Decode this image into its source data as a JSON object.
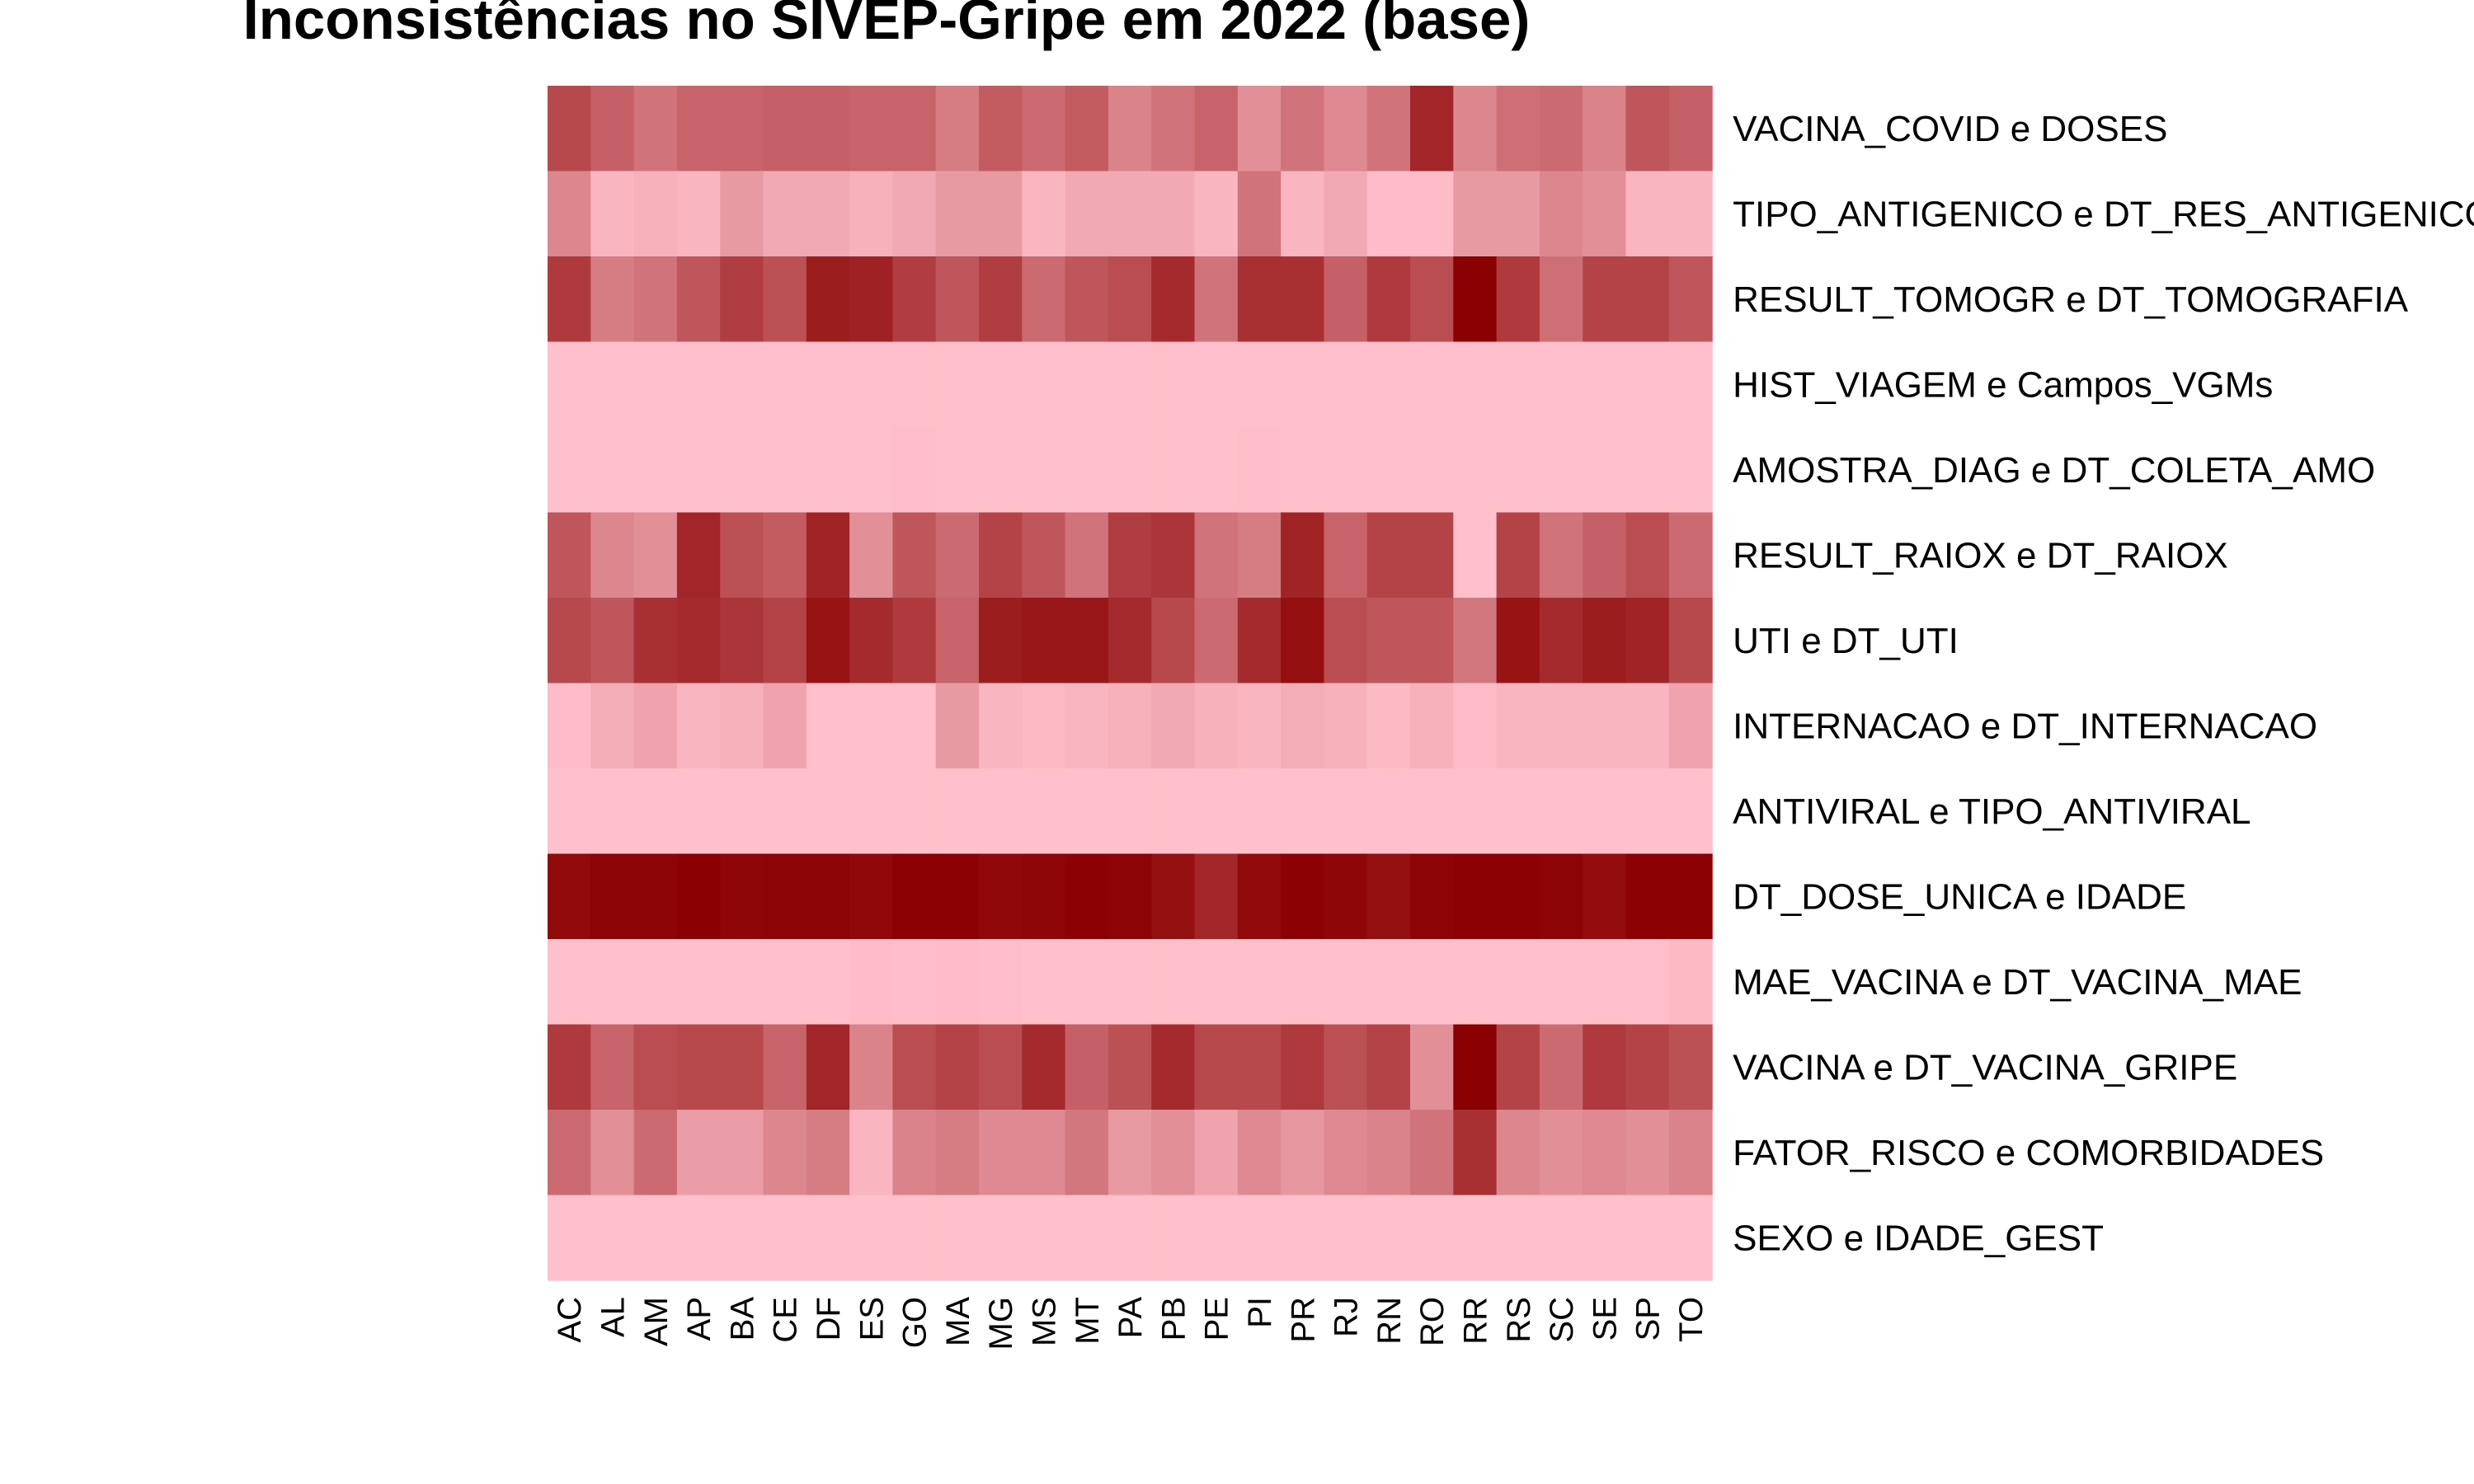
{
  "chart_data": {
    "type": "heatmap",
    "title": "Inconsistências no SIVEP-Gripe em 2022 (base)",
    "xlabel": "",
    "ylabel": "",
    "grid": false,
    "legend": "none",
    "colors": {
      "low": "#FFC0CB",
      "high": "#8B0000"
    },
    "value_scale": [
      0,
      1
    ],
    "columns": [
      "AC",
      "AL",
      "AM",
      "AP",
      "BA",
      "CE",
      "DF",
      "ES",
      "GO",
      "MA",
      "MG",
      "MS",
      "MT",
      "PA",
      "PB",
      "PE",
      "PI",
      "PR",
      "RJ",
      "RN",
      "RO",
      "RR",
      "RS",
      "SC",
      "SE",
      "SP",
      "TO"
    ],
    "rows": [
      "VACINA_COVID e DOSES",
      "TIPO_ANTIGENICO e DT_RES_ANTIGENICO",
      "RESULT_TOMOGR e DT_TOMOGRAFIA",
      "HIST_VIAGEM e Campos_VGMs",
      "AMOSTRA_DIAG e DT_COLETA_AMO",
      "RESULT_RAIOX e DT_RAIOX",
      "UTI e DT_UTI",
      "INTERNACAO e DT_INTERNACAO",
      "ANTIVIRAL e TIPO_ANTIVIRAL",
      "DT_DOSE_UNICA e IDADE",
      "MAE_VACINA e DT_VACINA_MAE",
      "VACINA e DT_VACINA_GRIPE",
      "FATOR_RISCO e COMORBIDADES",
      "SEXO e IDADE_GEST"
    ],
    "values": [
      [
        0.62,
        0.5,
        0.4,
        0.48,
        0.48,
        0.5,
        0.5,
        0.48,
        0.48,
        0.35,
        0.52,
        0.45,
        0.52,
        0.32,
        0.4,
        0.48,
        0.25,
        0.4,
        0.28,
        0.4,
        0.8,
        0.3,
        0.42,
        0.45,
        0.32,
        0.55,
        0.5
      ],
      [
        0.3,
        0.05,
        0.08,
        0.05,
        0.2,
        0.12,
        0.12,
        0.08,
        0.12,
        0.2,
        0.2,
        0.05,
        0.12,
        0.12,
        0.12,
        0.05,
        0.4,
        0.05,
        0.12,
        0.02,
        0.02,
        0.2,
        0.2,
        0.3,
        0.25,
        0.05,
        0.05
      ],
      [
        0.7,
        0.35,
        0.4,
        0.55,
        0.68,
        0.58,
        0.85,
        0.83,
        0.68,
        0.55,
        0.68,
        0.45,
        0.55,
        0.6,
        0.78,
        0.4,
        0.75,
        0.75,
        0.5,
        0.7,
        0.6,
        1.0,
        0.7,
        0.42,
        0.65,
        0.65,
        0.55
      ],
      [
        0.0,
        0.0,
        0.0,
        0.0,
        0.0,
        0.0,
        0.0,
        0.0,
        0.0,
        0.0,
        0.0,
        0.0,
        0.0,
        0.0,
        0.0,
        0.0,
        0.0,
        0.0,
        0.0,
        0.0,
        0.0,
        0.0,
        0.0,
        0.0,
        0.0,
        0.0,
        0.0
      ],
      [
        0.0,
        0.0,
        0.0,
        0.0,
        0.0,
        0.0,
        0.0,
        0.0,
        0.01,
        0.0,
        0.0,
        0.0,
        0.0,
        0.0,
        0.0,
        0.0,
        0.01,
        0.0,
        0.0,
        0.0,
        0.0,
        0.0,
        0.0,
        0.0,
        0.0,
        0.0,
        0.0
      ],
      [
        0.55,
        0.3,
        0.25,
        0.8,
        0.58,
        0.52,
        0.82,
        0.25,
        0.55,
        0.45,
        0.65,
        0.55,
        0.4,
        0.68,
        0.72,
        0.4,
        0.35,
        0.82,
        0.48,
        0.65,
        0.65,
        0.0,
        0.65,
        0.4,
        0.5,
        0.6,
        0.45
      ],
      [
        0.62,
        0.55,
        0.75,
        0.78,
        0.72,
        0.65,
        0.9,
        0.78,
        0.7,
        0.48,
        0.85,
        0.88,
        0.88,
        0.78,
        0.62,
        0.45,
        0.78,
        0.92,
        0.6,
        0.55,
        0.55,
        0.38,
        0.9,
        0.78,
        0.85,
        0.82,
        0.62
      ],
      [
        0.02,
        0.1,
        0.15,
        0.05,
        0.08,
        0.15,
        0.0,
        0.0,
        0.0,
        0.2,
        0.05,
        0.03,
        0.05,
        0.08,
        0.12,
        0.08,
        0.05,
        0.1,
        0.08,
        0.03,
        0.08,
        0.02,
        0.05,
        0.05,
        0.05,
        0.05,
        0.15
      ],
      [
        0.0,
        0.0,
        0.0,
        0.0,
        0.0,
        0.0,
        0.0,
        0.0,
        0.0,
        0.0,
        0.0,
        0.0,
        0.0,
        0.0,
        0.0,
        0.0,
        0.0,
        0.0,
        0.0,
        0.0,
        0.0,
        0.0,
        0.0,
        0.0,
        0.0,
        0.0,
        0.0
      ],
      [
        0.95,
        0.98,
        0.98,
        1.0,
        0.97,
        0.98,
        0.98,
        0.96,
        0.99,
        0.99,
        0.96,
        0.97,
        0.99,
        0.98,
        0.92,
        0.8,
        0.95,
        0.99,
        0.97,
        0.92,
        0.98,
        0.99,
        0.99,
        0.98,
        0.93,
        0.99,
        0.99
      ],
      [
        0.0,
        0.0,
        0.0,
        0.0,
        0.0,
        0.0,
        0.0,
        0.02,
        0.01,
        0.02,
        0.01,
        0.0,
        0.0,
        0.0,
        0.0,
        0.0,
        0.0,
        0.0,
        0.0,
        0.0,
        0.0,
        0.0,
        0.0,
        0.0,
        0.0,
        0.0,
        0.03
      ],
      [
        0.7,
        0.48,
        0.6,
        0.62,
        0.62,
        0.48,
        0.8,
        0.32,
        0.6,
        0.65,
        0.6,
        0.78,
        0.5,
        0.58,
        0.78,
        0.62,
        0.62,
        0.7,
        0.58,
        0.65,
        0.25,
        1.0,
        0.65,
        0.45,
        0.7,
        0.65,
        0.58
      ],
      [
        0.45,
        0.25,
        0.45,
        0.18,
        0.18,
        0.3,
        0.35,
        0.05,
        0.32,
        0.35,
        0.28,
        0.28,
        0.38,
        0.2,
        0.25,
        0.15,
        0.28,
        0.22,
        0.28,
        0.32,
        0.4,
        0.75,
        0.3,
        0.25,
        0.28,
        0.25,
        0.32
      ],
      [
        0.0,
        0.0,
        0.0,
        0.0,
        0.0,
        0.0,
        0.0,
        0.0,
        0.0,
        0.0,
        0.0,
        0.0,
        0.0,
        0.0,
        0.0,
        0.0,
        0.0,
        0.0,
        0.0,
        0.0,
        0.0,
        0.0,
        0.0,
        0.0,
        0.0,
        0.0,
        0.0
      ]
    ]
  }
}
